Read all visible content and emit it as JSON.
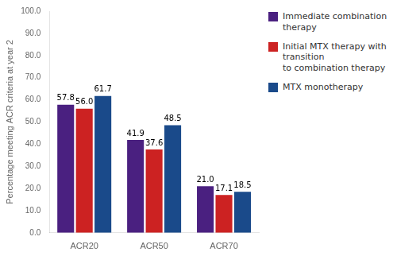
{
  "chart_data": {
    "type": "bar",
    "categories": [
      "ACR20",
      "ACR50",
      "ACR70"
    ],
    "series": [
      {
        "name": "Immediate combination therapy",
        "color": "#4a2080",
        "values": [
          57.8,
          41.9,
          21.0
        ],
        "value_labels": [
          "57.8",
          "41.9",
          "21.0"
        ]
      },
      {
        "name": "Initial MTX therapy with transition\nto combination therapy",
        "color": "#cc2222",
        "values": [
          56.0,
          37.6,
          17.1
        ],
        "value_labels": [
          "56.0",
          "37.6",
          "17.1"
        ]
      },
      {
        "name": "MTX monotherapy",
        "color": "#1a4a8a",
        "values": [
          61.7,
          48.5,
          18.5
        ],
        "value_labels": [
          "61.7",
          "48.5",
          "18.5"
        ]
      }
    ],
    "ylabel": "Percentage meeting ACR criteria at year 2",
    "ylim": [
      0,
      100
    ],
    "yticks": [
      {
        "value": 0,
        "label": "0.0"
      },
      {
        "value": 10,
        "label": "10.0"
      },
      {
        "value": 20,
        "label": "20.0"
      },
      {
        "value": 30,
        "label": "30.0"
      },
      {
        "value": 40,
        "label": "40.0"
      },
      {
        "value": 50,
        "label": "50.0"
      },
      {
        "value": 60,
        "label": "60.0"
      },
      {
        "value": 70,
        "label": "70.0"
      },
      {
        "value": 80,
        "label": "80.0"
      },
      {
        "value": 90,
        "label": "90.0"
      },
      {
        "value": 100,
        "label": "100.0"
      }
    ],
    "grid": false,
    "legend": "right",
    "data_labels": true
  }
}
